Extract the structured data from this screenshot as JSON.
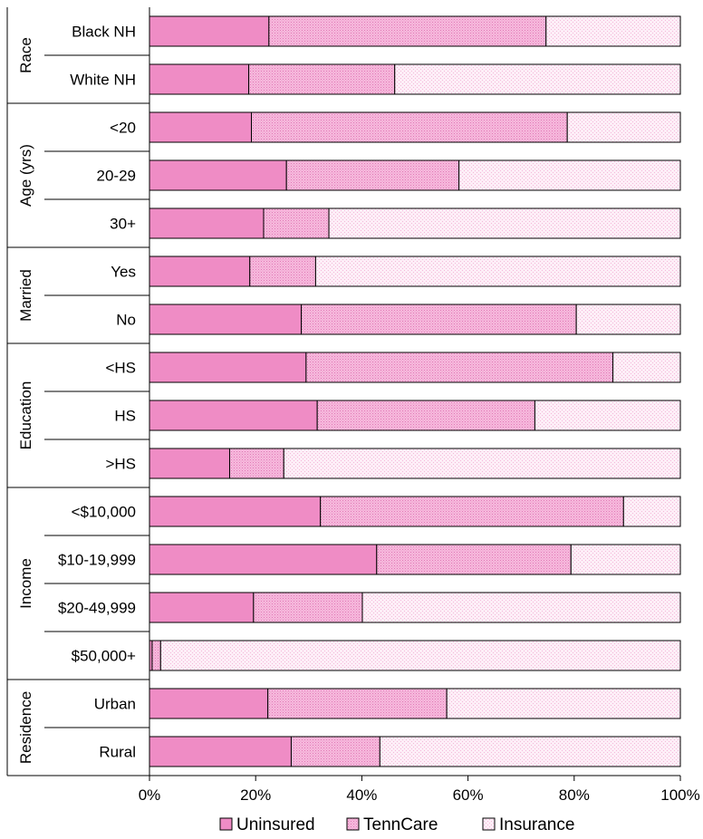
{
  "chart_data": {
    "type": "bar",
    "orientation": "horizontal",
    "stacked": "100%",
    "x_ticks": [
      "0%",
      "20%",
      "40%",
      "60%",
      "80%",
      "100%"
    ],
    "xlim": [
      0,
      100
    ],
    "grid": false,
    "legend_position": "bottom",
    "groups": [
      {
        "label": "Race",
        "categories": [
          "Black NH",
          "White NH"
        ]
      },
      {
        "label": "Age (yrs)",
        "categories": [
          "<20",
          "20-29",
          "30+"
        ]
      },
      {
        "label": "Married",
        "categories": [
          "Yes",
          "No"
        ]
      },
      {
        "label": "Education",
        "categories": [
          "<HS",
          "HS",
          ">HS"
        ]
      },
      {
        "label": "Income",
        "categories": [
          "<$10,000",
          "$10-19,999",
          "$20-49,999",
          "$50,000+"
        ]
      },
      {
        "label": "Residence",
        "categories": [
          "Urban",
          "Rural"
        ]
      }
    ],
    "categories": [
      "Black NH",
      "White NH",
      "<20",
      "20-29",
      "30+",
      "Yes",
      "No",
      "<HS",
      "HS",
      ">HS",
      "<$10,000",
      "$10-19,999",
      "$20-49,999",
      "$50,000+",
      "Urban",
      "Rural"
    ],
    "series": [
      {
        "name": "Uninsured",
        "values": [
          22.5,
          18.7,
          19.2,
          25.8,
          21.5,
          18.9,
          28.6,
          29.5,
          31.6,
          15.1,
          32.2,
          42.8,
          19.6,
          0.5,
          22.3,
          26.7
        ],
        "color": "#f29fcf"
      },
      {
        "name": "TennCare",
        "values": [
          52.2,
          27.5,
          59.5,
          32.5,
          12.3,
          12.4,
          51.8,
          57.8,
          41.0,
          10.2,
          57.1,
          36.6,
          20.5,
          1.6,
          33.7,
          16.7
        ],
        "color": "#f6b6db"
      },
      {
        "name": "Insurance",
        "values": [
          25.3,
          53.8,
          21.3,
          41.7,
          66.2,
          68.7,
          19.6,
          12.7,
          27.4,
          74.7,
          10.7,
          20.6,
          59.9,
          97.9,
          44.0,
          56.6
        ],
        "color": "#fbe3f1"
      }
    ]
  }
}
